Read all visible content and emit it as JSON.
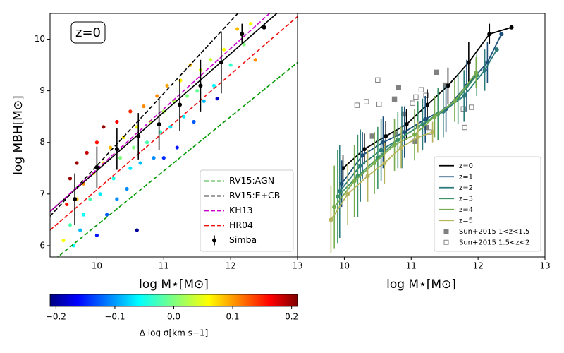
{
  "chart_data": [
    {
      "type": "scatter",
      "annotation": "z=0",
      "xlabel": "log M⋆[M⊙]",
      "ylabel": "log MBH[M⊙]",
      "xlim": [
        9.3,
        13
      ],
      "ylim": [
        5.78,
        10.5
      ],
      "xticks": [
        10,
        11,
        12,
        13
      ],
      "yticks": [
        6,
        7,
        8,
        9,
        10
      ],
      "legend": "lower right",
      "points": {
        "x": [
          9.5,
          9.55,
          9.6,
          9.6,
          9.65,
          9.7,
          9.7,
          9.75,
          9.8,
          9.8,
          9.85,
          9.9,
          9.95,
          10.0,
          10.0,
          10.05,
          10.1,
          10.1,
          10.15,
          10.2,
          10.25,
          10.3,
          10.3,
          10.35,
          10.4,
          10.45,
          10.5,
          10.5,
          10.55,
          10.6,
          10.6,
          10.65,
          10.7,
          10.75,
          10.8,
          10.85,
          10.9,
          10.95,
          11.0,
          11.0,
          11.05,
          11.1,
          11.15,
          11.2,
          11.25,
          11.3,
          11.35,
          11.4,
          11.45,
          11.5,
          11.55,
          11.6,
          11.7,
          11.75,
          11.8,
          11.9,
          12.0,
          12.1,
          12.2,
          12.3,
          12.37
        ],
        "y": [
          6.1,
          6.8,
          7.3,
          6.4,
          6.0,
          7.6,
          6.9,
          6.3,
          7.2,
          6.6,
          7.8,
          6.9,
          7.4,
          6.2,
          8.0,
          7.0,
          7.6,
          8.3,
          6.6,
          7.9,
          7.3,
          8.4,
          6.9,
          7.7,
          8.1,
          7.1,
          8.6,
          7.5,
          7.9,
          8.3,
          6.3,
          7.6,
          8.7,
          8.0,
          8.4,
          7.7,
          8.9,
          8.2,
          8.6,
          7.7,
          9.1,
          8.3,
          8.8,
          7.9,
          9.2,
          8.5,
          8.9,
          9.5,
          8.4,
          9.0,
          9.4,
          8.8,
          9.6,
          9.1,
          8.85,
          9.8,
          9.5,
          10.2,
          9.9,
          10.3,
          9.6
        ],
        "values": [
          0.05,
          0.15,
          0.2,
          -0.02,
          -0.05,
          0.2,
          0.08,
          -0.08,
          0.1,
          -0.05,
          0.18,
          -0.02,
          0.06,
          -0.15,
          0.15,
          -0.06,
          0.05,
          0.2,
          -0.12,
          0.08,
          -0.04,
          0.16,
          -0.1,
          0.0,
          0.06,
          -0.1,
          0.14,
          -0.06,
          0.0,
          0.05,
          -0.2,
          -0.08,
          0.1,
          -0.02,
          0.03,
          -0.1,
          0.1,
          -0.03,
          0.02,
          -0.14,
          0.09,
          -0.06,
          0.02,
          -0.15,
          0.06,
          -0.06,
          0.0,
          0.08,
          -0.12,
          -0.01,
          0.04,
          -0.08,
          0.03,
          -0.05,
          -0.18,
          0.05,
          -0.03,
          0.08,
          0.0,
          0.05,
          0.1
        ]
      },
      "colorbar": {
        "label": "Δ log σ[km s−1]",
        "clim": [
          -0.21,
          0.21
        ],
        "ticks": [
          {
            "value": -0.2,
            "label": "−0.2"
          },
          {
            "value": -0.1,
            "label": "−0.1"
          },
          {
            "value": 0,
            "label": "0.0"
          },
          0.1,
          0.2
        ]
      },
      "fit": {
        "color": "#000000",
        "x": [
          9.3,
          12.69
        ],
        "y": [
          6.66,
          10.5
        ]
      },
      "relations": [
        {
          "name": "RV15:AGN",
          "color": "#009900",
          "x": [
            9.3,
            13
          ],
          "y": [
            5.66,
            9.55
          ]
        },
        {
          "name": "RV15:E+CB",
          "color": "#000000",
          "x": [
            9.3,
            13
          ],
          "y": [
            6.57,
            11.75
          ]
        },
        {
          "name": "KH13",
          "color": "#cc00cc",
          "x": [
            9.3,
            13
          ],
          "y": [
            6.66,
            10.99
          ]
        },
        {
          "name": "HR04",
          "color": "#ee1111",
          "x": [
            9.3,
            13
          ],
          "y": [
            6.3,
            10.44
          ]
        }
      ],
      "series": [
        {
          "name": "Simba",
          "color": "#000000",
          "x": [
            9.67,
            10.0,
            10.3,
            10.62,
            10.93,
            11.24,
            11.55,
            11.86,
            12.17,
            12.5
          ],
          "values": [
            6.9,
            7.52,
            7.87,
            8.12,
            8.35,
            8.73,
            9.1,
            9.55,
            10.1,
            10.23
          ],
          "errors": [
            0.5,
            0.4,
            0.4,
            0.45,
            0.5,
            0.5,
            0.5,
            0.6,
            0.2,
            0
          ]
        }
      ]
    },
    {
      "type": "line",
      "xlabel": "log M⋆[M⊙]",
      "xlim": [
        9.3,
        13
      ],
      "ylim": [
        5.78,
        10.5
      ],
      "xticks": [
        10,
        11,
        12,
        13
      ],
      "legend": "lower right",
      "series": [
        {
          "name": "z=0",
          "color": "#000000",
          "x": [
            9.98,
            10.3,
            10.62,
            10.93,
            11.24,
            11.55,
            11.86,
            12.17,
            12.5
          ],
          "values": [
            7.5,
            7.87,
            8.12,
            8.35,
            8.73,
            9.1,
            9.55,
            10.1,
            10.23
          ],
          "errors": [
            0.25,
            0.3,
            0.3,
            0.3,
            0.3,
            0.35,
            0.4,
            0.2,
            0
          ]
        },
        {
          "name": "z=1",
          "color": "#1b4f7a",
          "x": [
            9.96,
            10.27,
            10.58,
            10.9,
            11.21,
            11.52,
            11.83,
            12.14,
            12.35
          ],
          "values": [
            7.2,
            7.75,
            8.0,
            8.2,
            8.45,
            8.65,
            9.1,
            9.55,
            10.1
          ],
          "errors": [
            0.45,
            0.45,
            0.5,
            0.5,
            0.45,
            0.45,
            0.5,
            0.4,
            0
          ]
        },
        {
          "name": "z=2",
          "color": "#2b7b7b",
          "x": [
            9.93,
            10.24,
            10.55,
            10.86,
            11.17,
            11.48,
            11.79,
            12.1,
            12.28
          ],
          "values": [
            7.05,
            7.55,
            7.85,
            8.1,
            8.35,
            8.6,
            8.9,
            9.4,
            9.8
          ],
          "errors": [
            0.9,
            0.7,
            0.6,
            0.6,
            0.5,
            0.5,
            0.5,
            0.4,
            0
          ]
        },
        {
          "name": "z=3",
          "color": "#3c9466",
          "x": [
            9.9,
            10.2,
            10.5,
            10.8,
            11.1,
            11.4,
            11.7,
            11.98
          ],
          "values": [
            6.95,
            7.35,
            7.7,
            8.05,
            8.3,
            8.55,
            8.85,
            9.3
          ],
          "errors": [
            0.9,
            0.8,
            0.6,
            0.55,
            0.5,
            0.5,
            0.5,
            0.4
          ]
        },
        {
          "name": "z=4",
          "color": "#78ad4d",
          "x": [
            9.85,
            10.15,
            10.45,
            10.75,
            11.05,
            11.35,
            11.65,
            11.97
          ],
          "values": [
            6.75,
            7.25,
            7.6,
            7.95,
            8.15,
            8.5,
            8.8,
            9.35
          ],
          "errors": [
            0.8,
            0.7,
            0.6,
            0.5,
            0.5,
            0.4,
            0.4,
            0.3
          ]
        },
        {
          "name": "z=5",
          "color": "#b5b35c",
          "x": [
            9.8,
            10.05,
            10.35,
            10.6,
            10.85,
            11.1,
            11.32
          ],
          "values": [
            6.5,
            7.0,
            7.35,
            7.6,
            7.9,
            8.1,
            8.2
          ],
          "errors": [
            0.65,
            0.6,
            0.5,
            0.4,
            0.4,
            0.3,
            0.2
          ]
        }
      ],
      "squares": [
        {
          "name": "Sun+2015 1<z<1.5",
          "color": "#808080",
          "filled": true,
          "x": [
            10.42,
            10.75,
            10.81,
            10.89,
            11.06,
            11.38,
            11.51,
            11.23,
            10.76
          ],
          "values": [
            8.12,
            8.84,
            9.06,
            8.55,
            8.02,
            9.36,
            9.11,
            8.29,
            8.16
          ]
        },
        {
          "name": "Sun+2015 1.5<z<2",
          "color": "#808080",
          "filled": false,
          "x": [
            10.19,
            10.33,
            10.5,
            10.52,
            11.02,
            11.07,
            11.15,
            11.22,
            11.78,
            11.9,
            11.8,
            11.27
          ],
          "values": [
            8.72,
            8.79,
            9.21,
            8.74,
            8.76,
            8.88,
            9.02,
            8.91,
            8.65,
            8.68,
            8.29,
            8.2
          ]
        }
      ]
    }
  ]
}
